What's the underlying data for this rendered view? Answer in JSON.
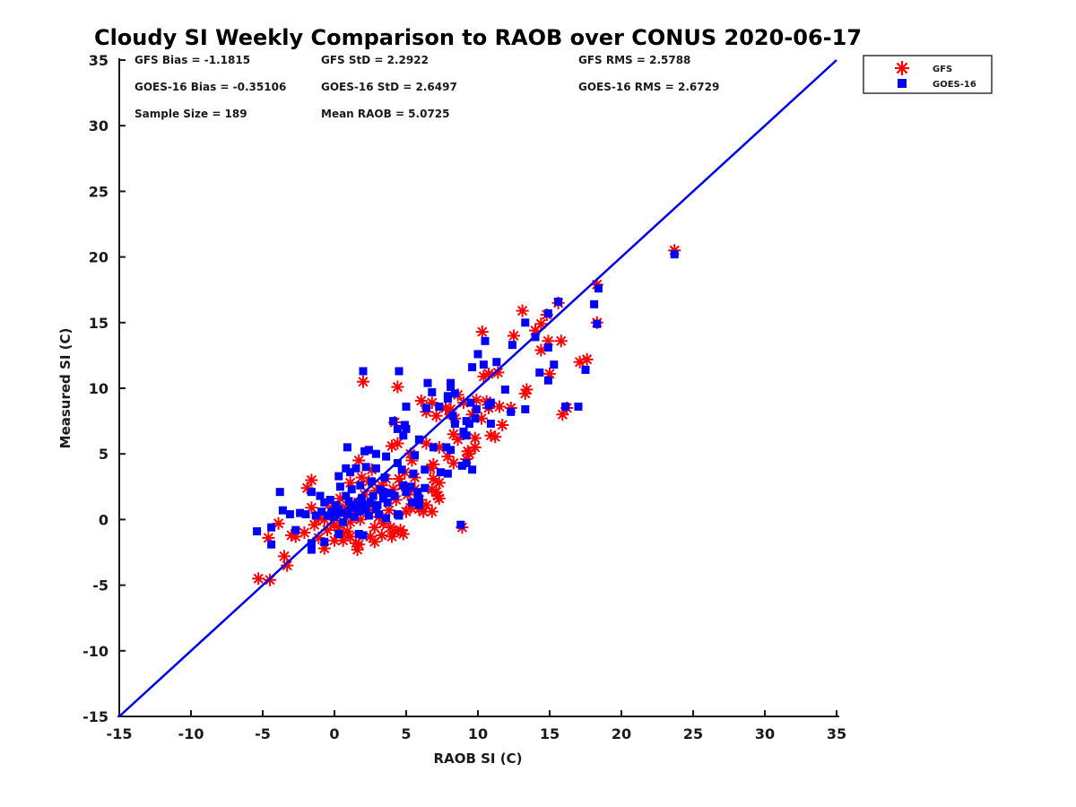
{
  "chart_data": {
    "type": "scatter",
    "title": "Cloudy SI Weekly Comparison to RAOB over CONUS 2020-06-17",
    "xlabel": "RAOB SI (C)",
    "ylabel": "Measured SI (C)",
    "xlim": [
      -15,
      35
    ],
    "ylim": [
      -15,
      35
    ],
    "xticks": [
      -15,
      -10,
      -5,
      0,
      5,
      10,
      15,
      20,
      25,
      30,
      35
    ],
    "yticks": [
      -15,
      -10,
      -5,
      0,
      5,
      10,
      15,
      20,
      25,
      30,
      35
    ],
    "grid": false,
    "box": false,
    "axis_color": "#1a1a1a",
    "background_color": "#ffffff",
    "stats": {
      "gfs": {
        "bias": -1.1815,
        "std": 2.2922,
        "rms": 2.5788
      },
      "goes16": {
        "bias": -0.35106,
        "std": 2.6497,
        "rms": 2.6729
      },
      "sample_size": 189,
      "mean_raob": 5.0725
    },
    "stats_display": [
      "GFS Bias = -1.1815",
      "GFS StD = 2.2922",
      "GFS RMS = 2.5788",
      "GOES-16 Bias = -0.35106",
      "GOES-16 StD = 2.6497",
      "GOES-16 RMS = 2.6729",
      "Sample Size = 189",
      "Mean RAOB = 5.0725"
    ],
    "legend": {
      "position": "outside-top-right",
      "entries": [
        {
          "label": "GFS",
          "marker": "asterisk",
          "color": "#ff0000"
        },
        {
          "label": "GOES-16",
          "marker": "square",
          "color": "#0000ff"
        }
      ]
    },
    "reference_line": {
      "type": "identity",
      "from": [
        -15,
        -15
      ],
      "to": [
        35,
        35
      ],
      "color": "#0000ee"
    },
    "series": [
      {
        "name": "GFS",
        "marker": "asterisk",
        "color": "#ff0000",
        "points": [
          [
            23.7,
            20.5
          ],
          [
            18.3,
            17.9
          ],
          [
            18.3,
            15.0
          ],
          [
            17.6,
            12.2
          ],
          [
            17.1,
            12.0
          ],
          [
            15.6,
            16.5
          ],
          [
            14.8,
            15.6
          ],
          [
            14.4,
            14.9
          ],
          [
            14.0,
            14.4
          ],
          [
            13.1,
            15.9
          ],
          [
            12.5,
            14.0
          ],
          [
            14.4,
            12.9
          ],
          [
            14.9,
            13.6
          ],
          [
            15.8,
            13.6
          ],
          [
            15.0,
            11.1
          ],
          [
            15.9,
            8.0
          ],
          [
            16.2,
            8.5
          ],
          [
            13.4,
            9.9
          ],
          [
            13.3,
            9.6
          ],
          [
            12.3,
            8.5
          ],
          [
            11.5,
            8.6
          ],
          [
            11.4,
            11.2
          ],
          [
            10.75,
            11.1
          ],
          [
            10.4,
            10.9
          ],
          [
            10.3,
            14.3
          ],
          [
            10.6,
            9.0
          ],
          [
            10.25,
            7.7
          ],
          [
            10.75,
            8.5
          ],
          [
            10.9,
            6.4
          ],
          [
            11.2,
            6.3
          ],
          [
            11.7,
            7.2
          ],
          [
            9.9,
            9.1
          ],
          [
            9.6,
            8.0
          ],
          [
            8.6,
            9.5
          ],
          [
            8.1,
            8.0
          ],
          [
            8.1,
            8.4
          ],
          [
            9.0,
            8.9
          ],
          [
            8.4,
            7.7
          ],
          [
            7.75,
            8.5
          ],
          [
            7.1,
            7.9
          ],
          [
            6.8,
            8.9
          ],
          [
            6.05,
            9.05
          ],
          [
            6.4,
            8.2
          ],
          [
            4.4,
            10.1
          ],
          [
            4.2,
            7.4
          ],
          [
            2.0,
            10.5
          ],
          [
            8.3,
            6.5
          ],
          [
            8.6,
            6.1
          ],
          [
            9.8,
            6.2
          ],
          [
            9.8,
            5.5
          ],
          [
            9.3,
            5.2
          ],
          [
            9.2,
            4.6
          ],
          [
            9.4,
            5.0
          ],
          [
            8.3,
            4.3
          ],
          [
            7.9,
            4.8
          ],
          [
            7.3,
            5.5
          ],
          [
            7.3,
            2.8
          ],
          [
            6.9,
            4.2
          ],
          [
            6.7,
            3.9
          ],
          [
            6.9,
            3.1
          ],
          [
            5.6,
            3.2
          ],
          [
            5.4,
            4.5
          ],
          [
            4.5,
            3.1
          ],
          [
            4.4,
            5.8
          ],
          [
            6.4,
            5.8
          ],
          [
            5.6,
            2.3
          ],
          [
            6.8,
            2.3
          ],
          [
            7.2,
            1.8
          ],
          [
            5.9,
            1.5
          ],
          [
            6.2,
            0.6
          ],
          [
            5.0,
            0.6
          ],
          [
            5.3,
            0.9
          ],
          [
            5.9,
            0.8
          ],
          [
            6.4,
            1.1
          ],
          [
            6.8,
            0.6
          ],
          [
            7.1,
            2.1
          ],
          [
            7.3,
            1.6
          ],
          [
            8.9,
            -0.6
          ],
          [
            4.6,
            -0.8
          ],
          [
            3.9,
            -0.6
          ],
          [
            4.2,
            -0.9
          ],
          [
            4.8,
            -1.1
          ],
          [
            4.0,
            -1.3
          ],
          [
            2.8,
            -1.7
          ],
          [
            2.5,
            -1.3
          ],
          [
            3.3,
            -1.2
          ],
          [
            2.8,
            -0.6
          ],
          [
            1.7,
            -1.9
          ],
          [
            1.5,
            -1.8
          ],
          [
            1.6,
            -2.3
          ],
          [
            1.1,
            -1.3
          ],
          [
            0.9,
            -0.9
          ],
          [
            0.6,
            -1.6
          ],
          [
            0.6,
            -1.1
          ],
          [
            0.0,
            -1.6
          ],
          [
            -0.7,
            -2.2
          ],
          [
            -1.1,
            -1.4
          ],
          [
            -1.1,
            0.1
          ],
          [
            -0.7,
            0.0
          ],
          [
            0.0,
            -0.4
          ],
          [
            0.3,
            -0.6
          ],
          [
            1.1,
            -0.2
          ],
          [
            1.1,
            2.8
          ],
          [
            1.7,
            4.5
          ],
          [
            2.6,
            3.8
          ],
          [
            3.6,
            3.1
          ],
          [
            4.0,
            5.6
          ],
          [
            -1.6,
            3.0
          ],
          [
            -1.9,
            2.4
          ],
          [
            -1.6,
            0.9
          ],
          [
            -1.4,
            -0.4
          ],
          [
            -2.1,
            -1.0
          ],
          [
            -2.7,
            -1.3
          ],
          [
            -3.0,
            -1.2
          ],
          [
            -3.9,
            -0.3
          ],
          [
            -4.6,
            -1.4
          ],
          [
            -3.5,
            -2.8
          ],
          [
            -3.3,
            -3.5
          ],
          [
            -5.3,
            -4.5
          ],
          [
            -4.5,
            -4.6
          ],
          [
            0.2,
            0.3
          ],
          [
            0.8,
            0.9
          ],
          [
            1.3,
            0.4
          ],
          [
            1.8,
            0.0
          ],
          [
            2.3,
            0.5
          ],
          [
            2.6,
            1.1
          ],
          [
            3.1,
            0.2
          ],
          [
            3.4,
            -0.3
          ],
          [
            3.8,
            0.7
          ],
          [
            4.3,
            1.5
          ],
          [
            2.1,
            1.9
          ],
          [
            1.4,
            1.2
          ],
          [
            0.4,
            1.6
          ],
          [
            -0.2,
            0.9
          ],
          [
            2.9,
            2.2
          ],
          [
            3.3,
            2.6
          ],
          [
            4.1,
            2.3
          ],
          [
            4.7,
            2.6
          ],
          [
            1.9,
            3.2
          ],
          [
            2.4,
            2.9
          ],
          [
            0.0,
            0.5
          ],
          [
            -0.5,
            -0.8
          ],
          [
            5.1,
            1.9
          ],
          [
            4.9,
            3.6
          ],
          [
            5.3,
            5.0
          ]
        ]
      },
      {
        "name": "GOES-16",
        "marker": "square",
        "color": "#0000ff",
        "points": [
          [
            23.7,
            20.2
          ],
          [
            18.4,
            17.6
          ],
          [
            18.3,
            14.9
          ],
          [
            18.1,
            16.4
          ],
          [
            17.5,
            11.4
          ],
          [
            15.6,
            16.6
          ],
          [
            14.9,
            15.7
          ],
          [
            13.3,
            15.0
          ],
          [
            12.4,
            13.3
          ],
          [
            14.0,
            13.9
          ],
          [
            14.9,
            13.1
          ],
          [
            10.5,
            13.6
          ],
          [
            15.3,
            11.8
          ],
          [
            14.3,
            11.2
          ],
          [
            14.9,
            10.6
          ],
          [
            16.1,
            8.6
          ],
          [
            17.0,
            8.6
          ],
          [
            13.3,
            8.4
          ],
          [
            12.3,
            8.2
          ],
          [
            11.9,
            9.9
          ],
          [
            10.9,
            8.9
          ],
          [
            9.9,
            8.4
          ],
          [
            9.5,
            8.9
          ],
          [
            10.75,
            8.7
          ],
          [
            10.9,
            7.3
          ],
          [
            10.0,
            12.6
          ],
          [
            10.4,
            11.8
          ],
          [
            11.3,
            12.0
          ],
          [
            9.6,
            11.6
          ],
          [
            8.1,
            10.4
          ],
          [
            8.1,
            10.1
          ],
          [
            8.4,
            9.6
          ],
          [
            7.9,
            9.4
          ],
          [
            7.9,
            9.2
          ],
          [
            6.5,
            10.4
          ],
          [
            6.8,
            9.7
          ],
          [
            4.5,
            11.3
          ],
          [
            2.0,
            11.3
          ],
          [
            9.2,
            7.5
          ],
          [
            9.4,
            7.3
          ],
          [
            8.4,
            7.3
          ],
          [
            8.25,
            7.9
          ],
          [
            7.3,
            8.6
          ],
          [
            9.0,
            6.7
          ],
          [
            9.2,
            6.4
          ],
          [
            9.8,
            7.7
          ],
          [
            5.0,
            8.6
          ],
          [
            4.9,
            7.2
          ],
          [
            4.1,
            7.5
          ],
          [
            4.4,
            6.9
          ],
          [
            5.0,
            6.9
          ],
          [
            6.4,
            8.5
          ],
          [
            4.8,
            6.4
          ],
          [
            5.9,
            6.1
          ],
          [
            6.9,
            5.5
          ],
          [
            7.8,
            5.5
          ],
          [
            9.0,
            6.5
          ],
          [
            9.2,
            4.3
          ],
          [
            9.6,
            3.8
          ],
          [
            8.9,
            4.1
          ],
          [
            7.9,
            3.5
          ],
          [
            8.1,
            5.3
          ],
          [
            7.4,
            3.6
          ],
          [
            6.3,
            3.8
          ],
          [
            5.6,
            4.9
          ],
          [
            4.7,
            3.8
          ],
          [
            4.8,
            2.6
          ],
          [
            5.3,
            2.5
          ],
          [
            6.3,
            2.4
          ],
          [
            5.8,
            1.9
          ],
          [
            5.9,
            1.1
          ],
          [
            0.9,
            5.5
          ],
          [
            2.1,
            5.2
          ],
          [
            2.4,
            5.3
          ],
          [
            3.6,
            4.8
          ],
          [
            0.8,
            3.9
          ],
          [
            1.1,
            3.6
          ],
          [
            1.5,
            3.9
          ],
          [
            2.2,
            4.0
          ],
          [
            2.9,
            3.9
          ],
          [
            0.3,
            3.3
          ],
          [
            -3.8,
            2.1
          ],
          [
            -3.6,
            0.7
          ],
          [
            -3.1,
            0.4
          ],
          [
            -5.4,
            -0.9
          ],
          [
            -4.4,
            -0.6
          ],
          [
            -4.4,
            -1.9
          ],
          [
            -2.7,
            -0.8
          ],
          [
            -2.4,
            0.5
          ],
          [
            -2.0,
            0.4
          ],
          [
            -1.6,
            2.1
          ],
          [
            -1.3,
            0.3
          ],
          [
            -0.9,
            0.6
          ],
          [
            -1.6,
            -1.8
          ],
          [
            -1.6,
            -2.3
          ],
          [
            -0.7,
            -1.7
          ],
          [
            0.3,
            -1.1
          ],
          [
            1.7,
            -1.1
          ],
          [
            2.0,
            -1.2
          ],
          [
            3.6,
            0.1
          ],
          [
            4.5,
            0.3
          ],
          [
            4.4,
            0.4
          ],
          [
            3.7,
            1.3
          ],
          [
            5.4,
            1.3
          ],
          [
            5.9,
            1.6
          ],
          [
            5.8,
            2.1
          ],
          [
            5.0,
            2.1
          ],
          [
            3.4,
            1.6
          ],
          [
            3.4,
            2.1
          ],
          [
            1.9,
            1.6
          ],
          [
            0.8,
            1.8
          ],
          [
            -0.3,
            1.5
          ],
          [
            -0.7,
            1.3
          ],
          [
            -1.0,
            1.8
          ],
          [
            0.3,
            0.8
          ],
          [
            -0.2,
            0.6
          ],
          [
            1.2,
            0.9
          ],
          [
            0.9,
            0.4
          ],
          [
            1.7,
            0.6
          ],
          [
            2.2,
            0.7
          ],
          [
            2.9,
            0.8
          ],
          [
            8.8,
            -0.4
          ],
          [
            0.1,
            1.1
          ],
          [
            0.5,
            0.5
          ],
          [
            1.0,
            1.4
          ],
          [
            1.5,
            1.1
          ],
          [
            2.0,
            1.1
          ],
          [
            2.5,
            1.3
          ],
          [
            3.0,
            1.1
          ],
          [
            2.4,
            0.3
          ],
          [
            1.4,
            0.2
          ],
          [
            0.6,
            -0.2
          ],
          [
            2.7,
            1.8
          ],
          [
            3.2,
            2.3
          ],
          [
            3.9,
            2.0
          ],
          [
            4.2,
            1.8
          ],
          [
            1.2,
            2.3
          ],
          [
            0.4,
            2.5
          ],
          [
            1.8,
            2.6
          ],
          [
            2.6,
            2.9
          ],
          [
            3.5,
            3.2
          ],
          [
            4.4,
            4.3
          ],
          [
            3.1,
            0.4
          ],
          [
            0.0,
            0.2
          ],
          [
            -0.5,
            0.3
          ],
          [
            5.5,
            3.5
          ],
          [
            2.9,
            5.0
          ]
        ]
      }
    ]
  }
}
